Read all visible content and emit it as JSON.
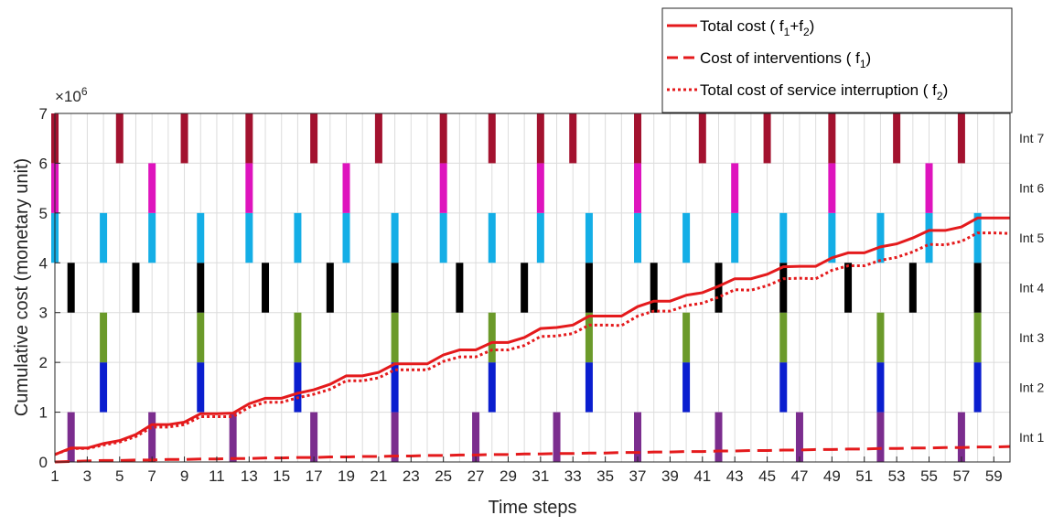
{
  "chart_data": {
    "type": "line",
    "xlabel": "Time steps",
    "ylabel": "Cumulative cost (monetary unit)",
    "y_multiplier": "×10",
    "y_multiplier_exp": "6",
    "xlim": [
      1,
      60
    ],
    "ylim": [
      0,
      7
    ],
    "x_ticks": [
      1,
      3,
      5,
      7,
      9,
      11,
      13,
      15,
      17,
      19,
      21,
      23,
      25,
      27,
      29,
      31,
      33,
      35,
      37,
      39,
      41,
      43,
      45,
      47,
      49,
      51,
      53,
      55,
      57,
      59
    ],
    "y_ticks": [
      0,
      1,
      2,
      3,
      4,
      5,
      6,
      7
    ],
    "grid": true,
    "legend_position": "top-right",
    "x": [
      1,
      2,
      3,
      4,
      5,
      6,
      7,
      8,
      9,
      10,
      11,
      12,
      13,
      14,
      15,
      16,
      17,
      18,
      19,
      20,
      21,
      22,
      23,
      24,
      25,
      26,
      27,
      28,
      29,
      30,
      31,
      32,
      33,
      34,
      35,
      36,
      37,
      38,
      39,
      40,
      41,
      42,
      43,
      44,
      45,
      46,
      47,
      48,
      49,
      50,
      51,
      52,
      53,
      54,
      55,
      56,
      57,
      58,
      59,
      60
    ],
    "series": [
      {
        "name": "Total cost",
        "name_formula": {
          "open": " ( f",
          "sub1": "1",
          "mid": "+f",
          "sub2": "2",
          "close": ")"
        },
        "color": "#e41a1c",
        "style": "solid",
        "values": [
          0.15,
          0.28,
          0.28,
          0.37,
          0.43,
          0.55,
          0.75,
          0.75,
          0.8,
          0.97,
          0.97,
          0.98,
          1.17,
          1.28,
          1.28,
          1.38,
          1.45,
          1.56,
          1.73,
          1.73,
          1.8,
          1.97,
          1.97,
          1.97,
          2.15,
          2.25,
          2.25,
          2.4,
          2.4,
          2.5,
          2.68,
          2.7,
          2.75,
          2.93,
          2.93,
          2.93,
          3.12,
          3.23,
          3.23,
          3.35,
          3.4,
          3.53,
          3.68,
          3.68,
          3.77,
          3.92,
          3.93,
          3.93,
          4.1,
          4.2,
          4.2,
          4.32,
          4.38,
          4.5,
          4.65,
          4.65,
          4.72,
          4.9,
          4.9,
          4.9
        ]
      },
      {
        "name": "Cost of interventions",
        "name_formula": {
          "open": " ( f",
          "sub1": "1",
          "close": ")"
        },
        "color": "#e41a1c",
        "style": "dashed",
        "values": [
          0.0,
          0.01,
          0.02,
          0.03,
          0.03,
          0.04,
          0.04,
          0.05,
          0.05,
          0.06,
          0.06,
          0.07,
          0.07,
          0.08,
          0.08,
          0.09,
          0.09,
          0.1,
          0.1,
          0.11,
          0.11,
          0.12,
          0.12,
          0.13,
          0.13,
          0.14,
          0.14,
          0.15,
          0.15,
          0.16,
          0.16,
          0.17,
          0.17,
          0.18,
          0.18,
          0.19,
          0.19,
          0.2,
          0.2,
          0.21,
          0.21,
          0.22,
          0.22,
          0.23,
          0.23,
          0.24,
          0.24,
          0.25,
          0.25,
          0.26,
          0.26,
          0.27,
          0.27,
          0.28,
          0.28,
          0.29,
          0.29,
          0.3,
          0.3,
          0.31
        ]
      },
      {
        "name": "Total cost of service interruption",
        "name_formula": {
          "open": " ( f",
          "sub1": "2",
          "close": ")"
        },
        "color": "#e41a1c",
        "style": "dotted",
        "values": [
          0.15,
          0.27,
          0.27,
          0.34,
          0.4,
          0.51,
          0.7,
          0.7,
          0.75,
          0.91,
          0.91,
          0.91,
          1.1,
          1.2,
          1.2,
          1.29,
          1.36,
          1.46,
          1.63,
          1.63,
          1.69,
          1.85,
          1.85,
          1.85,
          2.02,
          2.11,
          2.11,
          2.25,
          2.25,
          2.34,
          2.52,
          2.53,
          2.58,
          2.75,
          2.75,
          2.74,
          2.93,
          3.03,
          3.03,
          3.14,
          3.19,
          3.31,
          3.46,
          3.45,
          3.54,
          3.68,
          3.69,
          3.68,
          3.85,
          3.94,
          3.94,
          4.05,
          4.11,
          4.22,
          4.37,
          4.36,
          4.43,
          4.6,
          4.6,
          4.59
        ]
      }
    ],
    "intervention_rows": [
      {
        "label": "Int 1",
        "color": "#7b2d8e",
        "steps": [
          2,
          7,
          12,
          17,
          22,
          27,
          32,
          37,
          42,
          47,
          52,
          57
        ]
      },
      {
        "label": "Int 2",
        "color": "#0a1ecf",
        "steps": [
          4,
          10,
          16,
          22,
          28,
          34,
          40,
          46,
          52,
          58
        ]
      },
      {
        "label": "Int 3",
        "color": "#6b9a2a",
        "steps": [
          4,
          10,
          16,
          22,
          28,
          34,
          40,
          46,
          52,
          58
        ]
      },
      {
        "label": "Int 4",
        "color": "#000000",
        "steps": [
          2,
          6,
          10,
          14,
          18,
          22,
          26,
          30,
          34,
          38,
          42,
          46,
          50,
          54,
          58
        ]
      },
      {
        "label": "Int 5",
        "color": "#14aee6",
        "steps": [
          1,
          4,
          7,
          10,
          13,
          16,
          19,
          22,
          25,
          28,
          31,
          34,
          37,
          40,
          43,
          46,
          49,
          52,
          55,
          58
        ]
      },
      {
        "label": "Int 6",
        "color": "#de14bd",
        "steps": [
          1,
          7,
          13,
          19,
          25,
          31,
          37,
          43,
          49,
          55
        ]
      },
      {
        "label": "Int 7",
        "color": "#a3122f",
        "steps": [
          1,
          5,
          9,
          13,
          17,
          21,
          25,
          28,
          31,
          33,
          37,
          41,
          45,
          49,
          53,
          57
        ]
      }
    ]
  }
}
